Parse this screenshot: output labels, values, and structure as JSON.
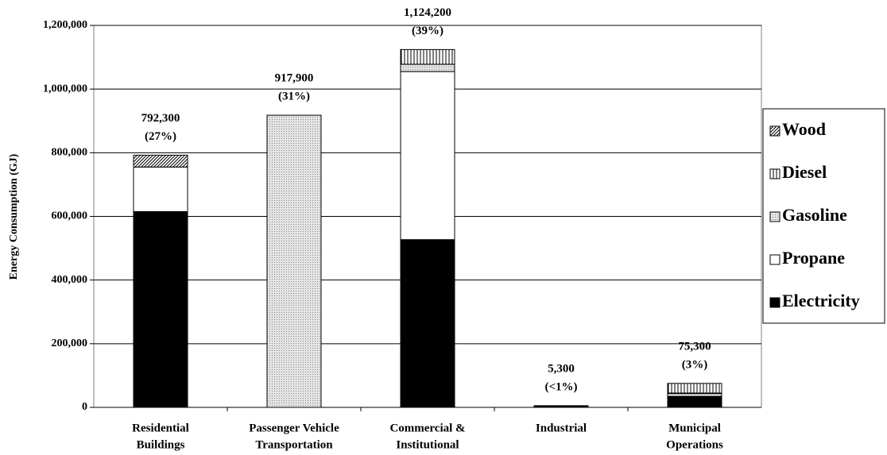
{
  "chart_data": {
    "type": "stacked-bar",
    "y_label": "Energy Consumption (GJ)",
    "categories": [
      [
        "Residential",
        "Buildings"
      ],
      [
        "Passenger Vehicle",
        "Transportation"
      ],
      [
        "Commercial &",
        "Institutional"
      ],
      [
        "Industrial"
      ],
      [
        "Municipal",
        "Operations"
      ]
    ],
    "series": [
      {
        "name": "Electricity",
        "color": "#000000",
        "pattern": "none",
        "values": [
          615000,
          0,
          527000,
          5300,
          35000
        ]
      },
      {
        "name": "Propane",
        "color": "#ffffff",
        "pattern": "none",
        "values": [
          140000,
          0,
          528000,
          0,
          8000
        ]
      },
      {
        "name": "Gasoline",
        "color": "#d8d8d8",
        "pattern": "dots",
        "values": [
          0,
          917900,
          23000,
          0,
          2000
        ]
      },
      {
        "name": "Diesel",
        "color": "#ffffff",
        "pattern": "vertical",
        "values": [
          0,
          0,
          46200,
          0,
          30300
        ]
      },
      {
        "name": "Wood",
        "color": "#ffffff",
        "pattern": "diagonal",
        "values": [
          37300,
          0,
          0,
          0,
          0
        ]
      }
    ],
    "totals": [
      792300,
      917900,
      1124200,
      5300,
      75300
    ],
    "total_labels": [
      "792,300",
      "917,900",
      "1,124,200",
      "5,300",
      "75,300"
    ],
    "share_labels": [
      "(27%)",
      "(31%)",
      "(39%)",
      "(<1%)",
      "(3%)"
    ],
    "ylim": [
      0,
      1200000
    ],
    "yticks": [
      0,
      {
        "value": 200000,
        "label": "200,000"
      },
      {
        "value": 400000,
        "label": "400,000"
      },
      {
        "value": 600000,
        "label": "600,000"
      },
      {
        "value": 800000,
        "label": "800,000"
      },
      {
        "value": 1000000,
        "label": "1,000,000"
      },
      {
        "value": 1200000,
        "label": "1,200,000"
      }
    ],
    "grid": true,
    "legend": "right"
  }
}
